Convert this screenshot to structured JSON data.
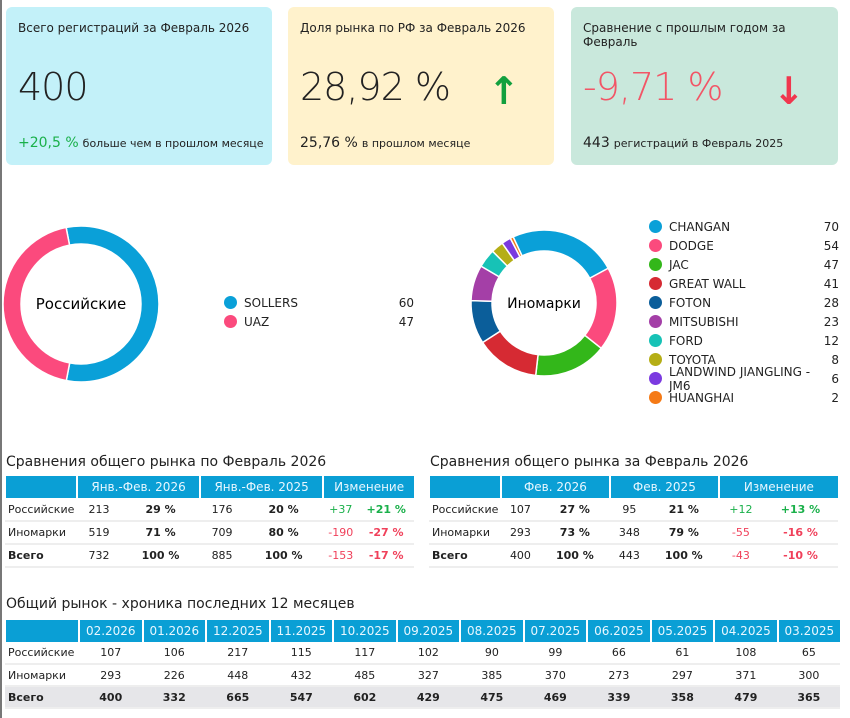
{
  "cards": [
    {
      "title": "Всего регистраций за Февраль 2026",
      "value": "400",
      "sub_value": "+20,5 %",
      "sub_text": "больше чем в прошлом месяце",
      "bg": "#c3f1f9"
    },
    {
      "title": "Доля рынка по РФ за Февраль 2026",
      "value": "28,92 %",
      "sub_value": "25,76 %",
      "sub_text": "в прошлом месяце",
      "bg": "#fff2cc",
      "arrow": "↑",
      "arrow_icon": "arrow-up-icon",
      "arrow_color": "#12a03e"
    },
    {
      "title": "Сравнение с прошлым годом за Февраль",
      "value": "-9,71 %",
      "sub_value": "443",
      "sub_text": "регистраций в Февраль 2025",
      "bg": "#c9e8dc",
      "arrow": "↓",
      "arrow_icon": "arrow-down-icon",
      "arrow_color": "#f0364e",
      "value_color": "#f25566"
    }
  ],
  "chart_data": [
    {
      "type": "pie",
      "title": "Российские",
      "labels": [
        "SOLLERS",
        "UAZ"
      ],
      "values": [
        60,
        47
      ],
      "colors": [
        "#0aa0d8",
        "#fb4a7d"
      ]
    },
    {
      "type": "pie",
      "title": "Иномарки",
      "labels": [
        "CHANGAN",
        "DODGE",
        "JAC",
        "GREAT WALL",
        "FOTON",
        "MITSUBISHI",
        "FORD",
        "TOYOTA",
        "LANDWIND JIANGLING - JM6",
        "HUANGHAI"
      ],
      "values": [
        70,
        54,
        47,
        41,
        28,
        23,
        12,
        8,
        6,
        2
      ],
      "colors": [
        "#0aa0d8",
        "#fb4a7d",
        "#33b71a",
        "#d62a33",
        "#0b5e9a",
        "#a43fa7",
        "#17c2b6",
        "#b5ae16",
        "#7b3ae0",
        "#f57a16"
      ]
    }
  ],
  "table1": {
    "title": "Сравнения общего рынка по Февраль 2026",
    "headers": [
      "",
      "Янв.-Фев. 2026",
      "Янв.-Фев. 2025",
      "Изменение"
    ],
    "rows": [
      [
        "Российские",
        "213",
        "29 %",
        "176",
        "20 %",
        "+37",
        "+21 %"
      ],
      [
        "Иномарки",
        "519",
        "71 %",
        "709",
        "80 %",
        "-190",
        "-27 %"
      ],
      [
        "Всего",
        "732",
        "100 %",
        "885",
        "100 %",
        "-153",
        "-17 %"
      ]
    ]
  },
  "table2": {
    "title": "Сравнения общего рынка за Февраль 2026",
    "headers": [
      "",
      "Фев. 2026",
      "Фев. 2025",
      "Изменение"
    ],
    "rows": [
      [
        "Российские",
        "107",
        "27 %",
        "95",
        "21 %",
        "+12",
        "+13 %"
      ],
      [
        "Иномарки",
        "293",
        "73 %",
        "348",
        "79 %",
        "-55",
        "-16 %"
      ],
      [
        "Всего",
        "400",
        "100 %",
        "443",
        "100 %",
        "-43",
        "-10 %"
      ]
    ]
  },
  "timeline": {
    "title": "Общий рынок - хроника последних 12 месяцев",
    "months": [
      "02.2026",
      "01.2026",
      "12.2025",
      "11.2025",
      "10.2025",
      "09.2025",
      "08.2025",
      "07.2025",
      "06.2025",
      "05.2025",
      "04.2025",
      "03.2025"
    ],
    "rows": [
      {
        "label": "Российские",
        "values": [
          "107",
          "106",
          "217",
          "115",
          "117",
          "102",
          "90",
          "99",
          "66",
          "61",
          "108",
          "65"
        ]
      },
      {
        "label": "Иномарки",
        "values": [
          "293",
          "226",
          "448",
          "432",
          "485",
          "327",
          "385",
          "370",
          "273",
          "297",
          "371",
          "300"
        ]
      },
      {
        "label": "Всего",
        "values": [
          "400",
          "332",
          "665",
          "547",
          "602",
          "429",
          "475",
          "469",
          "339",
          "358",
          "479",
          "365"
        ]
      }
    ]
  }
}
